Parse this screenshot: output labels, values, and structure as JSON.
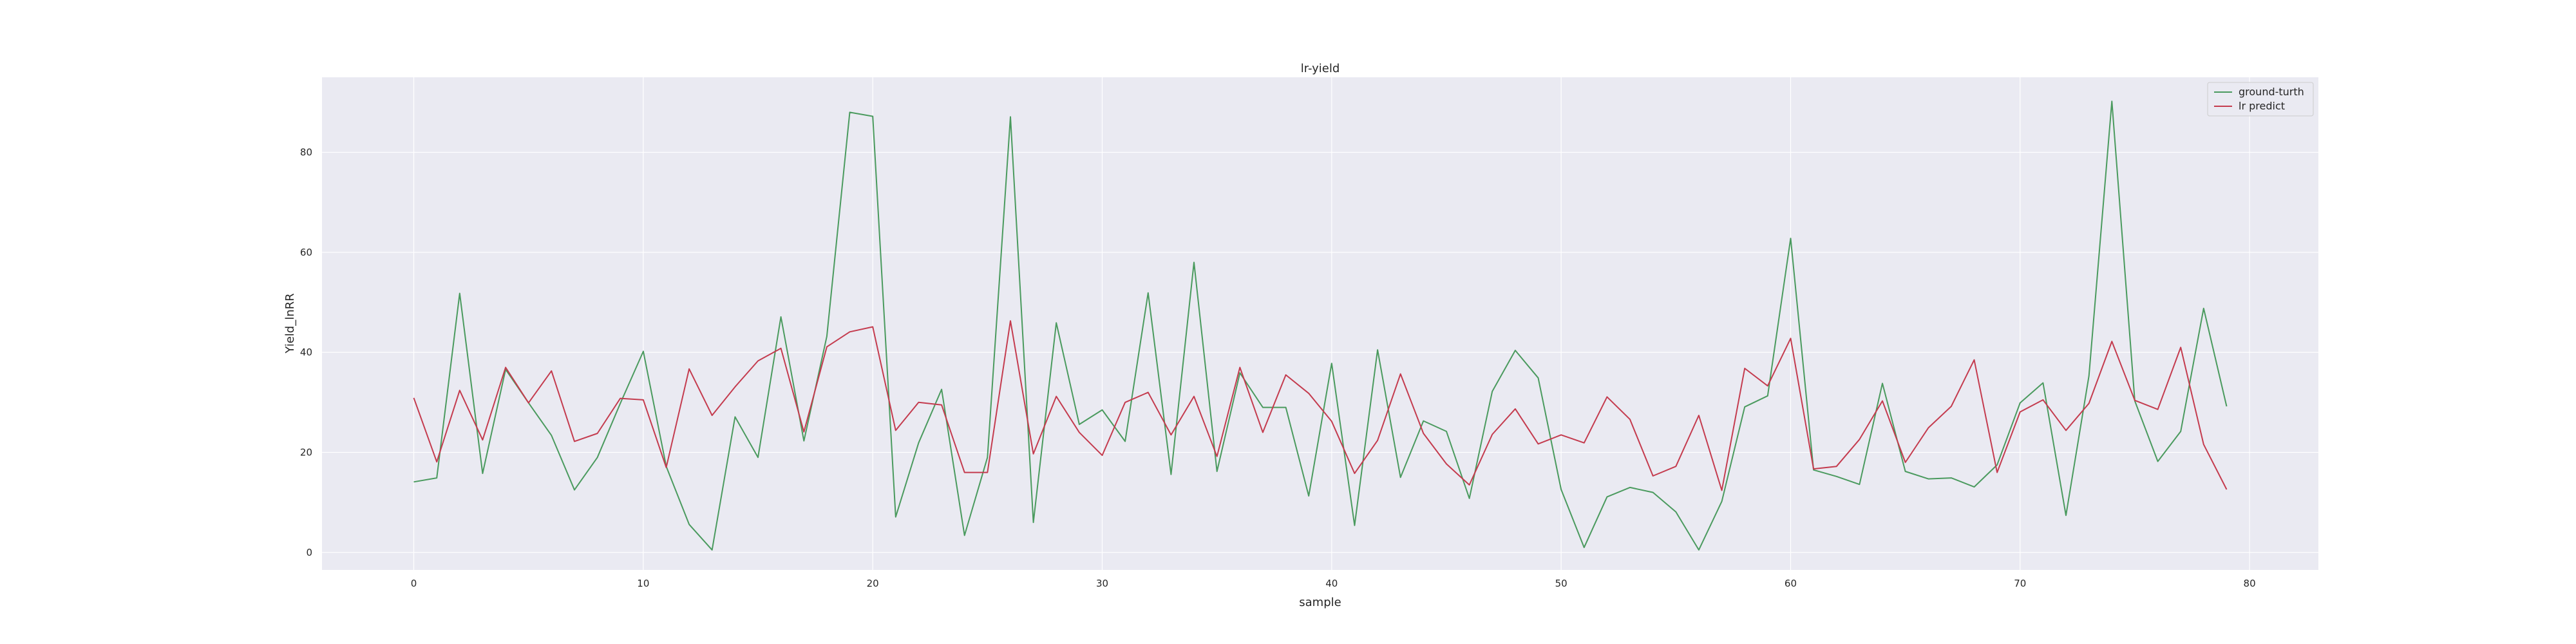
{
  "chart_data": {
    "type": "line",
    "title": "lr-yield",
    "xlabel": "sample",
    "ylabel": "Yield_lnRR",
    "xlim": [
      -4,
      83
    ],
    "ylim": [
      -3.5,
      95
    ],
    "xticks": [
      0,
      10,
      20,
      30,
      40,
      50,
      60,
      70,
      80
    ],
    "yticks": [
      0,
      20,
      40,
      60,
      80
    ],
    "grid": true,
    "legend_position": "top-right",
    "background_color": "#eaeaf2",
    "series": [
      {
        "name": "ground-turth",
        "color": "#4a9a5e",
        "values": [
          14.1,
          14.9,
          51.8,
          15.8,
          36.6,
          29.9,
          23.4,
          12.5,
          19.0,
          29.8,
          40.2,
          17.2,
          5.6,
          0.5,
          27.1,
          19.0,
          47.1,
          22.3,
          43.2,
          88.0,
          87.2,
          7.1,
          21.9,
          32.6,
          3.4,
          19.0,
          87.1,
          6.0,
          45.9,
          25.6,
          28.5,
          22.2,
          51.9,
          15.6,
          58.0,
          16.2,
          35.9,
          29.0,
          29.0,
          11.3,
          37.8,
          5.4,
          40.5,
          15.0,
          26.3,
          24.2,
          10.8,
          32.2,
          40.4,
          34.9,
          12.6,
          1.0,
          11.1,
          13.0,
          12.0,
          8.1,
          0.5,
          10.2,
          29.1,
          31.3,
          62.8,
          16.5,
          15.2,
          13.6,
          33.8,
          16.2,
          14.7,
          14.9,
          13.1,
          17.5,
          29.9,
          33.9,
          7.4,
          35.3,
          90.2,
          30.3,
          18.2,
          24.2,
          48.8,
          29.2
        ]
      },
      {
        "name": "lr predict",
        "color": "#c43b4e",
        "values": [
          30.9,
          18.1,
          32.4,
          22.5,
          37.0,
          29.9,
          36.3,
          22.2,
          23.8,
          30.8,
          30.5,
          17.0,
          36.7,
          27.4,
          33.1,
          38.3,
          40.8,
          24.1,
          41.1,
          44.1,
          45.1,
          24.4,
          30.0,
          29.5,
          16.0,
          16.0,
          46.3,
          19.7,
          31.2,
          24.0,
          19.4,
          30.0,
          32.0,
          23.5,
          31.2,
          19.2,
          37.0,
          24.0,
          35.5,
          31.8,
          26.2,
          15.8,
          22.4,
          35.7,
          23.8,
          17.7,
          13.5,
          23.6,
          28.7,
          21.7,
          23.5,
          21.9,
          31.1,
          26.6,
          15.3,
          17.2,
          27.4,
          12.4,
          36.8,
          33.3,
          42.8,
          16.7,
          17.2,
          22.6,
          30.3,
          18.0,
          24.9,
          29.2,
          38.5,
          16.0,
          28.1,
          30.5,
          24.4,
          29.8,
          42.2,
          30.4,
          28.6,
          41.0,
          21.6,
          12.6
        ]
      }
    ]
  }
}
